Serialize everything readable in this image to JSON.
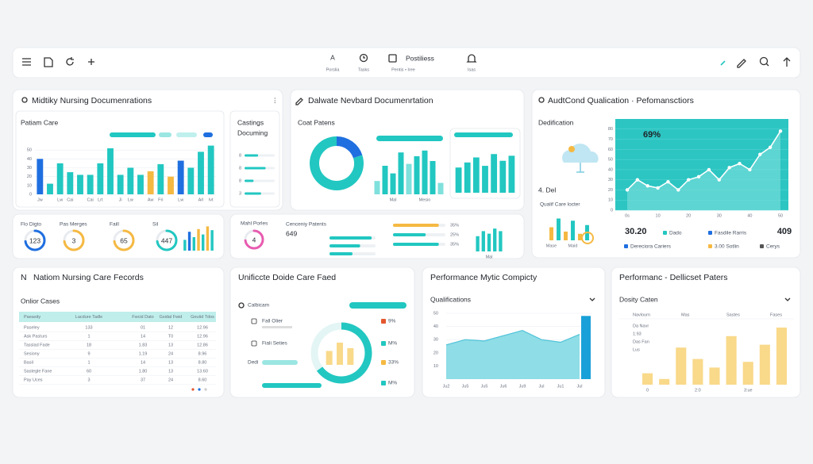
{
  "toolbar": {
    "nav": [
      {
        "glyph": "A",
        "label": "Porslia"
      },
      {
        "label": "Tasks"
      },
      {
        "glyph": "Postiliess",
        "label": "Pentis • Iree"
      },
      {
        "label": "Isas"
      }
    ]
  },
  "panels": [
    {
      "title": "Midtiky Nursing Documenrations",
      "subtitle": "Patiam Care",
      "chart": {
        "type": "bar",
        "categories": [
          "Jw",
          null,
          "Lw",
          "Cai",
          null,
          "Cai",
          "Lrt",
          null,
          "Ji",
          "Lw",
          null,
          "Aw",
          "Fri",
          null,
          "Lw",
          null,
          "Arl",
          "Ivt"
        ],
        "values": [
          40,
          12,
          35,
          25,
          22,
          22,
          35,
          52,
          22,
          30,
          22,
          26,
          34,
          20,
          38,
          30,
          48,
          55
        ],
        "colors": [
          "#1f6fe0",
          "#22c7c1",
          "#22c7c1",
          "#22c7c1",
          "#22c7c1",
          "#22c7c1",
          "#22c7c1",
          "#22c7c1",
          "#22c7c1",
          "#22c7c1",
          "#22c7c1",
          "#f5b942",
          "#22c7c1",
          "#f5b942",
          "#1f6fe0",
          "#22c7c1",
          "#22c7c1",
          "#22c7c1"
        ],
        "ylim": [
          0,
          60
        ],
        "yticks": [
          0,
          10,
          20,
          30,
          40,
          50
        ]
      }
    },
    {
      "title_lines": [
        "Castings",
        "Documing"
      ],
      "chart": {
        "type": "hbar",
        "labels": [
          "8",
          "8",
          "8",
          "3"
        ],
        "values": [
          45,
          70,
          30,
          55
        ],
        "xlim": [
          0,
          100
        ],
        "color": "#22c7c1"
      }
    },
    {
      "title": "Dalwate Nevbard Documenrtation",
      "subtitle": "Coat Patens",
      "donut": {
        "type": "pie",
        "values": [
          20,
          80
        ],
        "colors": [
          "#1f6fe0",
          "#22c7c1"
        ]
      },
      "bars": {
        "type": "bar",
        "categories": [
          null,
          null,
          "Mal",
          null,
          null,
          null,
          "Mesio",
          null,
          null
        ],
        "values": [
          14,
          30,
          22,
          44,
          32,
          40,
          46,
          35,
          12
        ],
        "colors": [
          "#7fe0dc",
          "#22c7c1",
          "#22c7c1",
          "#22c7c1",
          "#7fe0dc",
          "#22c7c1",
          "#22c7c1",
          "#22c7c1",
          "#7fe0dc"
        ],
        "ylim": [
          0,
          50
        ]
      },
      "bars2": {
        "type": "bar",
        "values": [
          30,
          36,
          42,
          32,
          46,
          38,
          44
        ],
        "color": "#22c7c1",
        "ylim": [
          0,
          50
        ]
      }
    },
    {
      "title": "AudtCond Qualication · Pefomansctiors",
      "subtitle": "Dedification",
      "caption": "4. Del",
      "note": "Qualif Care locter",
      "mini": {
        "type": "bar",
        "categories": [
          "Mase",
          null,
          null,
          "Maid",
          null,
          null
        ],
        "values": [
          30,
          50,
          20,
          45,
          15,
          35
        ],
        "colors": [
          "#f5b942",
          "#22c7c1",
          "#f5b942",
          "#22c7c1",
          "#f5b942",
          "#22c7c1"
        ],
        "ylim": [
          0,
          60
        ]
      },
      "line": {
        "type": "line",
        "annotation": "69%",
        "categories": [
          "0s",
          null,
          null,
          "10",
          null,
          null,
          "20",
          null,
          null,
          "30",
          null,
          null,
          "40",
          null,
          null,
          "50"
        ],
        "values": [
          20,
          30,
          24,
          22,
          28,
          20,
          30,
          33,
          40,
          30,
          42,
          46,
          40,
          55,
          62,
          78
        ],
        "ylim": [
          0,
          90
        ],
        "yticks": [
          0,
          10,
          20,
          30,
          40,
          50,
          60,
          70,
          80
        ]
      },
      "stats": [
        "30.20",
        "409"
      ],
      "legend": [
        "Dado",
        "Fasdile Rarris",
        "Dereciora Cariers",
        "3.00 Sotlin",
        "Cerys"
      ]
    },
    {
      "gauges": [
        {
          "label": "Flo Digto",
          "value": 123
        },
        {
          "label": "Pas Merges",
          "value": 3
        },
        {
          "label": "Faill",
          "value": 65
        },
        {
          "label": "Sil",
          "value": 447
        }
      ],
      "mini": {
        "type": "bar",
        "values": [
          20,
          35,
          25,
          40,
          30,
          45,
          38
        ],
        "colors": [
          "#22c7c1",
          "#1f6fe0",
          "#22c7c1",
          "#f5b942",
          "#22c7c1",
          "#f5b942",
          "#22c7c1"
        ],
        "ylim": [
          0,
          50
        ]
      }
    },
    {
      "gauge": {
        "label": "Mahl Porles",
        "value": 4
      },
      "title": "Cenceniy Patents",
      "value": 649,
      "bars_left": {
        "type": "hbar",
        "values": [
          55,
          40,
          30
        ],
        "xlim": [
          0,
          60
        ],
        "color": "#22c7c1"
      },
      "bars_right": {
        "type": "hbar",
        "values": [
          35,
          25,
          35
        ],
        "value_labels": [
          "35%",
          "25%",
          "35%"
        ],
        "xlim": [
          0,
          40
        ],
        "colors": [
          "#f5b942",
          "#22c7c1",
          "#22c7c1"
        ]
      },
      "mini": {
        "type": "bar",
        "categories": [
          null,
          null,
          "Mal",
          null,
          null
        ],
        "values": [
          30,
          40,
          35,
          45,
          40
        ],
        "color": "#22c7c1",
        "ylim": [
          0,
          50
        ]
      }
    },
    {
      "glyph": "N",
      "title": "Natiom Nursing Care Fecords",
      "subtitle": "Onlior Cases",
      "table": {
        "columns": [
          "Paeasity",
          "Lacdure Tadle",
          "Fwcid Dato",
          "Gsidal Fwid",
          "Geutid Tdos"
        ],
        "rows": [
          [
            "Paseley",
            "133",
            "01",
            "12",
            "12.96"
          ],
          [
            "Ask Pasturs",
            "1",
            "14",
            "T0",
            "12.96"
          ],
          [
            "Tasslad Fade",
            "18",
            "1.83",
            "13",
            "12.86"
          ],
          [
            "Sesiony",
            "9",
            "1.19",
            "24",
            "8.96"
          ],
          [
            "Basil",
            "1",
            "14",
            "13",
            "8.80"
          ],
          [
            "Sastegle Fane",
            "60",
            "1.80",
            "13",
            "13.60"
          ],
          [
            "Pay Uces",
            "3",
            "37",
            "24",
            "8.60"
          ]
        ]
      }
    },
    {
      "title": "Unificcte Doide Care Faed",
      "label": "Calbicam",
      "items": [
        "Fall Olier",
        "Fiali Seties",
        "Dedi"
      ],
      "donut": {
        "type": "pie",
        "values": [
          65,
          35
        ],
        "colors": [
          "#22c7c1",
          "#e3f5f4"
        ]
      },
      "bars": {
        "type": "bar",
        "values": [
          20,
          32,
          24
        ],
        "color": "#f9d98a",
        "ylim": [
          0,
          40
        ]
      },
      "percent_labels": [
        "9%",
        "M%",
        "33%",
        "M%"
      ],
      "percent_colors": [
        "#e4572e",
        "#22c7c1",
        "#f5b942",
        "#22c7c1"
      ]
    },
    {
      "title": "Performance Mytic Compicty",
      "subtitle": "Qualifications",
      "chart": {
        "type": "area",
        "categories": [
          "Ju2",
          "Ju5",
          "Ju5",
          "Ju6",
          "Ju9",
          "Jul",
          "Ju1",
          "Jul"
        ],
        "values": [
          26,
          30,
          29,
          33,
          37,
          30,
          28,
          34
        ],
        "ylim": [
          0,
          50
        ],
        "yticks": [
          10,
          20,
          30,
          40,
          50
        ],
        "highlight_value": 48,
        "color": "#8fdde6",
        "highlight_color": "#1aa0d8"
      }
    },
    {
      "title": "Performanc - Dellicset Paters",
      "subtitle": "Dosity Caten",
      "header": [
        "Navlourn",
        "Mas",
        "Sastes",
        "Fases"
      ],
      "row_labels": [
        "Da Navr",
        "1:93",
        "Das Fan",
        "Lus"
      ],
      "chart": {
        "type": "bar",
        "categories": [
          "0",
          null,
          null,
          "2:0",
          null,
          null,
          "3:ue",
          null,
          null
        ],
        "values": [
          8,
          4,
          26,
          18,
          12,
          34,
          16,
          28,
          40
        ],
        "color": "#f9d98a",
        "ylim": [
          0,
          50
        ]
      }
    }
  ]
}
